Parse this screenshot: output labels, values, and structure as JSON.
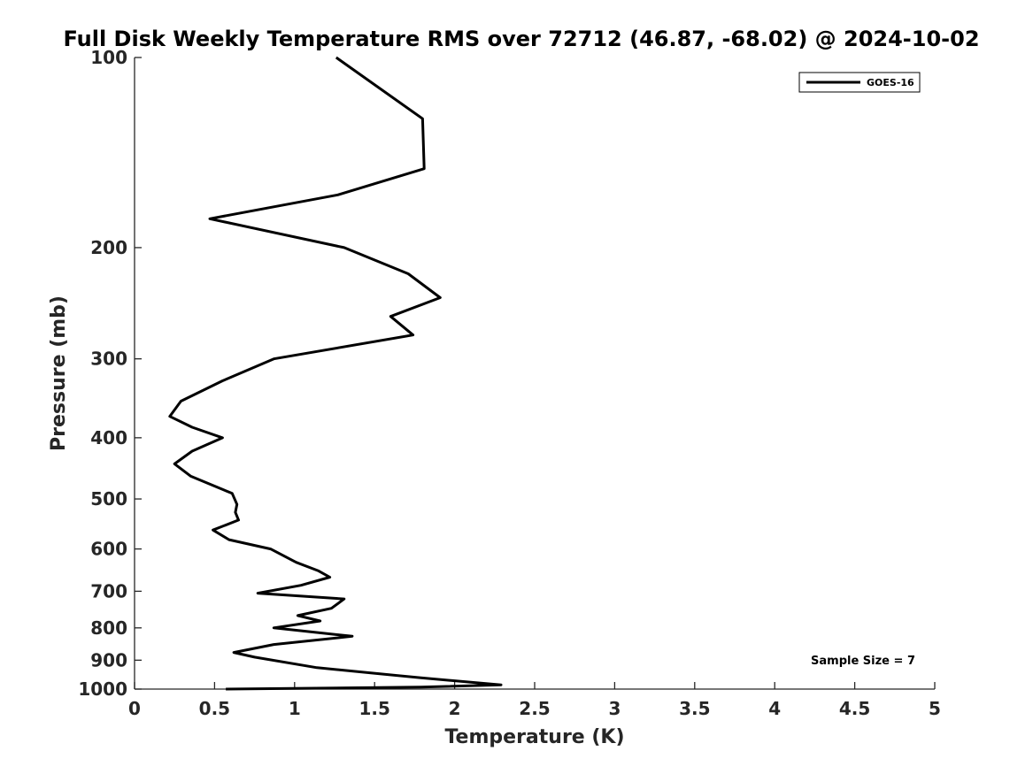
{
  "chart_data": {
    "type": "line",
    "title": "Full Disk Weekly Temperature RMS over 72712 (46.87, -68.02) @ 2024-10-02",
    "xlabel": "Temperature (K)",
    "ylabel": "Pressure (mb)",
    "xlim": [
      0,
      5
    ],
    "ylim": [
      100,
      1000
    ],
    "y_axis_reversed": true,
    "xticks": [
      "0",
      "0.5",
      "1",
      "1.5",
      "2",
      "2.5",
      "3",
      "3.5",
      "4",
      "4.5",
      "5"
    ],
    "xtick_values": [
      0,
      0.5,
      1,
      1.5,
      2,
      2.5,
      3,
      3.5,
      4,
      4.5,
      5
    ],
    "yticks": [
      "100",
      "200",
      "300",
      "400",
      "500",
      "600",
      "700",
      "800",
      "900",
      "1000"
    ],
    "ytick_values": [
      100,
      200,
      300,
      400,
      500,
      600,
      700,
      800,
      900,
      1000
    ],
    "grid": false,
    "legend_position": "top-right",
    "annotation": "Sample Size = 7",
    "series": [
      {
        "name": "GOES-16",
        "color": "#000000",
        "points": [
          [
            1.26,
            100
          ],
          [
            1.8,
            125
          ],
          [
            1.81,
            150
          ],
          [
            1.27,
            165
          ],
          [
            0.47,
            180
          ],
          [
            1.31,
            200
          ],
          [
            1.71,
            220
          ],
          [
            1.91,
            240
          ],
          [
            1.6,
            257
          ],
          [
            1.74,
            275
          ],
          [
            0.87,
            300
          ],
          [
            0.55,
            325
          ],
          [
            0.29,
            350
          ],
          [
            0.22,
            370
          ],
          [
            0.36,
            385
          ],
          [
            0.55,
            400
          ],
          [
            0.36,
            420
          ],
          [
            0.25,
            440
          ],
          [
            0.35,
            460
          ],
          [
            0.61,
            490
          ],
          [
            0.64,
            510
          ],
          [
            0.63,
            525
          ],
          [
            0.65,
            540
          ],
          [
            0.49,
            560
          ],
          [
            0.59,
            580
          ],
          [
            0.85,
            600
          ],
          [
            1.01,
            630
          ],
          [
            1.15,
            650
          ],
          [
            1.22,
            665
          ],
          [
            1.04,
            685
          ],
          [
            0.77,
            705
          ],
          [
            1.31,
            720
          ],
          [
            1.23,
            745
          ],
          [
            1.02,
            765
          ],
          [
            1.16,
            780
          ],
          [
            0.87,
            800
          ],
          [
            1.36,
            825
          ],
          [
            0.87,
            850
          ],
          [
            0.62,
            875
          ],
          [
            0.75,
            890
          ],
          [
            1.14,
            925
          ],
          [
            1.79,
            960
          ],
          [
            2.29,
            985
          ],
          [
            1.79,
            993
          ],
          [
            0.57,
            1000
          ]
        ]
      }
    ]
  }
}
